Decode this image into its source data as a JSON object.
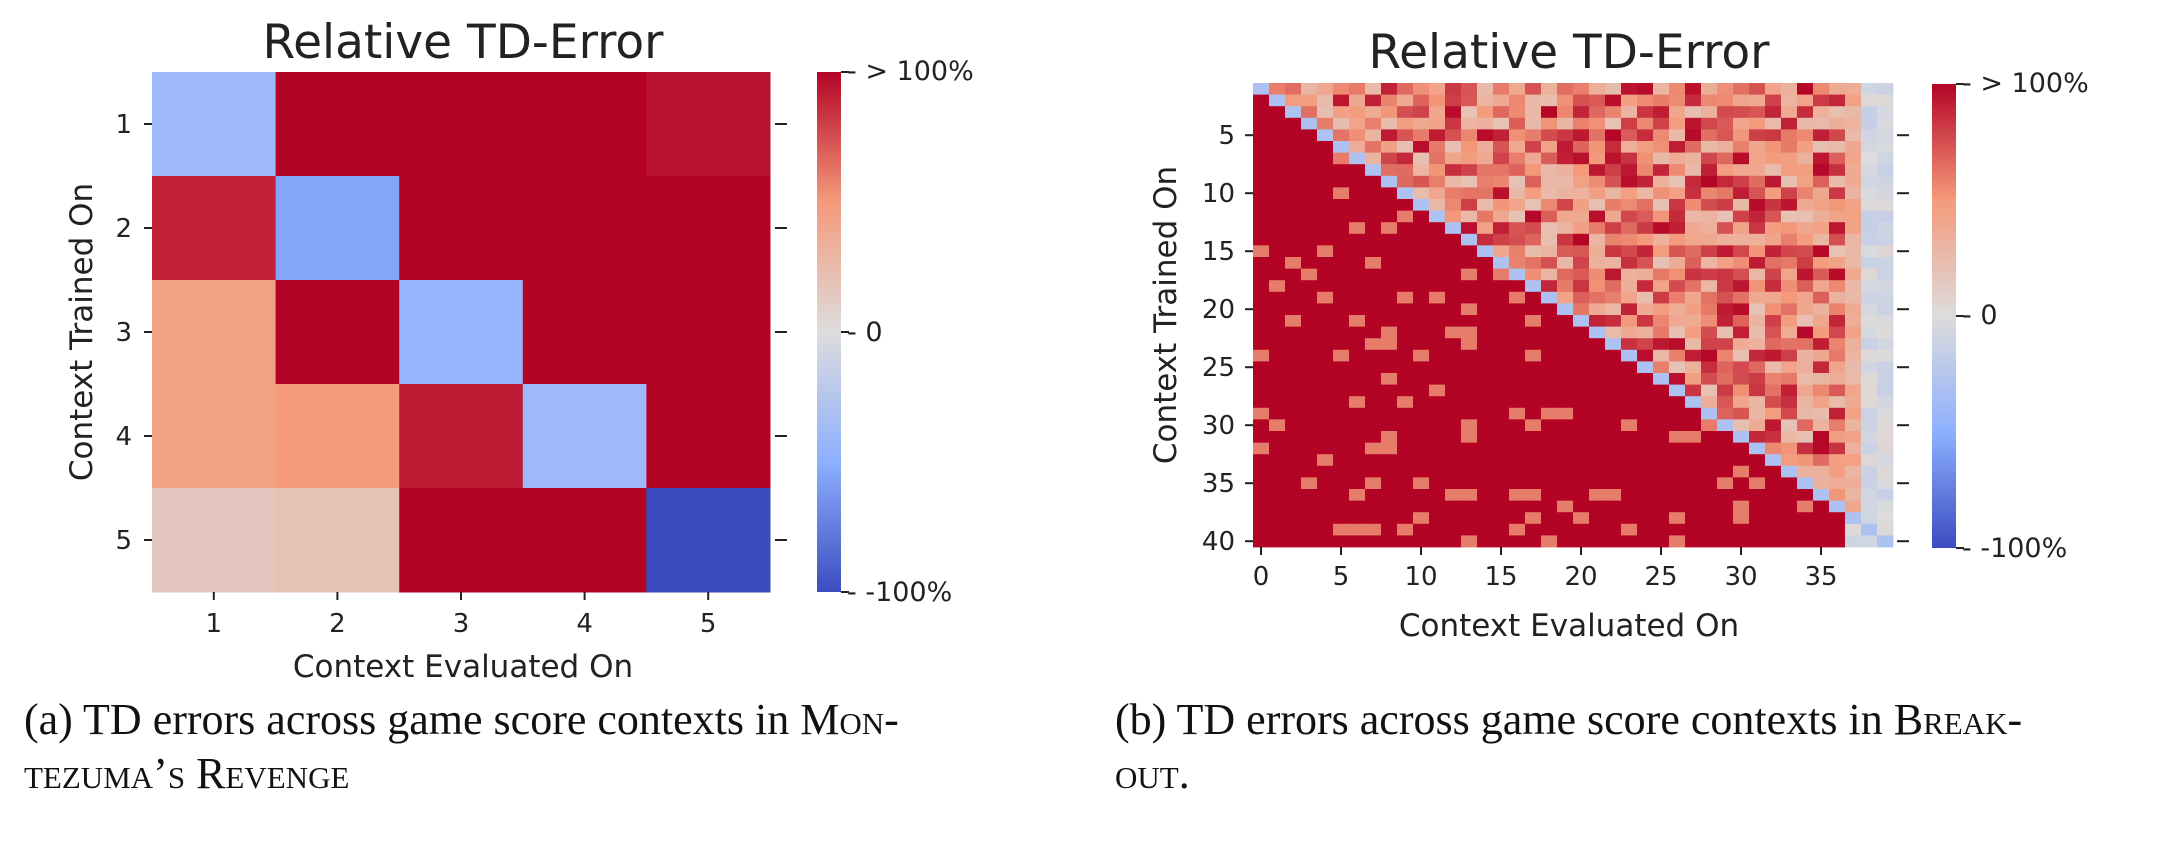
{
  "chart_data": [
    {
      "type": "heatmap",
      "title": "Relative TD-Error",
      "xlabel": "Context Evaluated On",
      "ylabel": "Context Trained On",
      "x_ticks": [
        "1",
        "2",
        "3",
        "4",
        "5"
      ],
      "y_ticks": [
        "1",
        "2",
        "3",
        "4",
        "5"
      ],
      "colorbar": {
        "max_label": "- > 100%",
        "mid_label": "- 0",
        "min_label": "- -100%",
        "range": [
          -100,
          100
        ],
        "colormap": "coolwarm"
      },
      "rows": 5,
      "cols": 5,
      "values_percent": [
        [
          -40,
          100,
          100,
          100,
          95
        ],
        [
          90,
          -55,
          100,
          100,
          100
        ],
        [
          45,
          100,
          -45,
          100,
          100
        ],
        [
          45,
          50,
          92,
          -40,
          100
        ],
        [
          15,
          20,
          100,
          100,
          -100
        ]
      ]
    },
    {
      "type": "heatmap",
      "title": "Relative TD-Error",
      "xlabel": "Context Evaluated On",
      "ylabel": "Context Trained On",
      "x_ticks": [
        "0",
        "5",
        "10",
        "15",
        "20",
        "25",
        "30",
        "35"
      ],
      "y_ticks": [
        "5",
        "10",
        "15",
        "20",
        "25",
        "30",
        "35",
        "40"
      ],
      "colorbar": {
        "max_label": "- > 100%",
        "mid_label": "- 0",
        "min_label": "- -100%",
        "range": [
          -100,
          100
        ],
        "colormap": "coolwarm"
      },
      "rows": 40,
      "cols": 40,
      "diagonal_value_percent": -30,
      "lower_triangle_value_percent": 100,
      "upper_triangle_range_percent": [
        20,
        100
      ],
      "last_columns_value_percent": -15,
      "note_values": "approximate: lower triangle saturated (> 100%), diagonal near -30%, upper triangle mostly 20-100%, last three columns near 0"
    }
  ],
  "captions": {
    "a": {
      "prefix": "(a) TD errors across game score contexts in M",
      "sc1": "on",
      "mid": "-",
      "sc2": "tezuma",
      "apos": "’",
      "sc3": "s",
      "space": " R",
      "sc4": "evenge"
    },
    "b": {
      "prefix": "(b) TD errors across game score contexts in B",
      "sc1": "reak",
      "mid": "-",
      "sc2": "out",
      "end": "."
    }
  }
}
